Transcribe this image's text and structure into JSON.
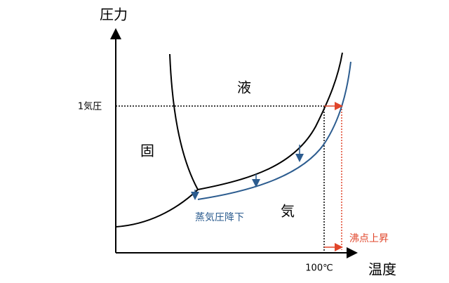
{
  "axes": {
    "y_label": "圧力",
    "x_label": "温度",
    "y_mark": "1気圧",
    "x_mark": "100℃"
  },
  "regions": {
    "liquid": "液",
    "solid": "固",
    "gas": "気"
  },
  "annotations": {
    "vapor_pressure_lowering": "蒸気圧降下",
    "boiling_point_elevation": "沸点上昇"
  }
}
